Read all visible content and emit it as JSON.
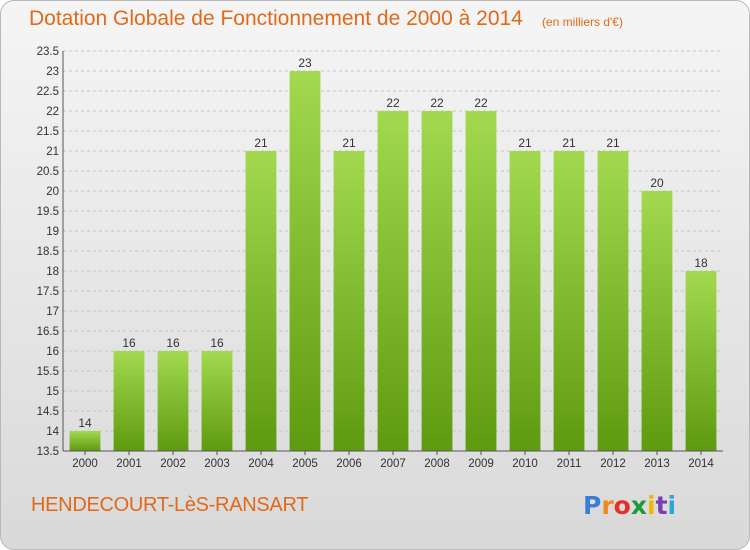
{
  "header": {
    "title": "Dotation Globale de Fonctionnement de 2000 à 2014",
    "subtitle": "(en milliers d'€)"
  },
  "footer": {
    "commune": "HENDECOURT-LèS-RANSART",
    "logo_letters": [
      "P",
      "r",
      "o",
      "x",
      "i",
      "t",
      "i"
    ],
    "logo_colors": [
      "#3a7dd6",
      "#f08a1c",
      "#e2302a",
      "#1f9a3a",
      "#f0b800",
      "#7a3fb0",
      "#2aa7d6"
    ]
  },
  "colors": {
    "bar_light": "#a2d94f",
    "bar_dark": "#5e9a0f",
    "grid": "#c4c4c4",
    "axis": "#555555",
    "text_accent": "#e06a1a"
  },
  "chart_data": {
    "type": "bar",
    "title": "Dotation Globale de Fonctionnement de 2000 à 2014",
    "subtitle": "(en milliers d'€)",
    "xlabel": "",
    "ylabel": "",
    "categories": [
      "2000",
      "2001",
      "2002",
      "2003",
      "2004",
      "2005",
      "2006",
      "2007",
      "2008",
      "2009",
      "2010",
      "2011",
      "2012",
      "2013",
      "2014"
    ],
    "values": [
      14,
      16,
      16,
      16,
      21,
      23,
      21,
      22,
      22,
      22,
      21,
      21,
      21,
      20,
      18
    ],
    "ylim": [
      13.5,
      23.5
    ],
    "yticks": [
      "13.5",
      "14",
      "14.5",
      "15",
      "15.5",
      "16",
      "16.5",
      "17",
      "17.5",
      "18",
      "18.5",
      "19",
      "19.5",
      "20",
      "20.5",
      "21",
      "21.5",
      "22",
      "22.5",
      "23",
      "23.5"
    ],
    "grid": true,
    "legend": "none"
  }
}
